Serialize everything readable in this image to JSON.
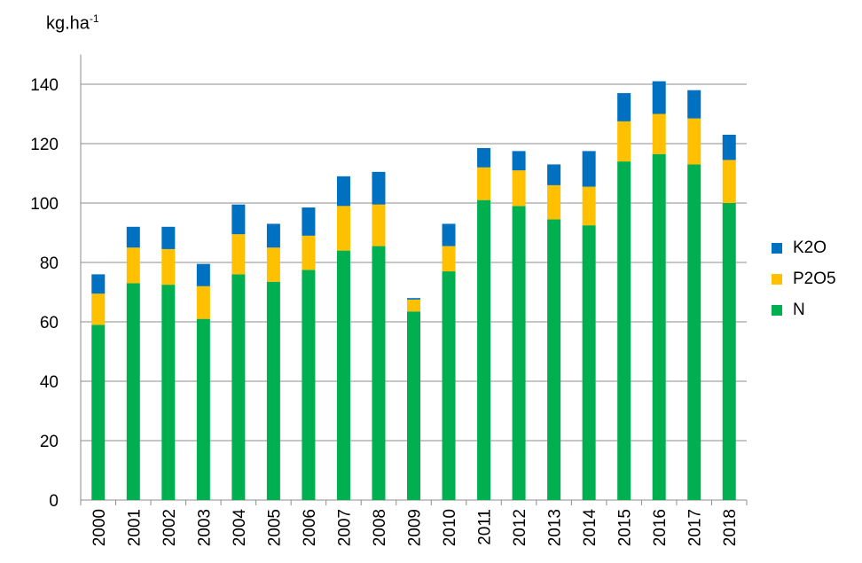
{
  "chart_data": {
    "type": "bar",
    "stacked": true,
    "ylabel_main": "kg.ha",
    "ylabel_sup": "-1",
    "ylim": [
      0,
      150
    ],
    "yticks": [
      0,
      20,
      40,
      60,
      80,
      100,
      120,
      140
    ],
    "grid": true,
    "legend_position": "right",
    "categories": [
      "2000",
      "2001",
      "2002",
      "2003",
      "2004",
      "2005",
      "2006",
      "2007",
      "2008",
      "2009",
      "2010",
      "2011",
      "2012",
      "2013",
      "2014",
      "2015",
      "2016",
      "2017",
      "2018"
    ],
    "series": [
      {
        "name": "N",
        "color": "#00b050",
        "values": [
          59,
          73,
          72.5,
          61,
          76,
          73.5,
          77.5,
          84,
          85.5,
          63.5,
          77,
          101,
          99,
          94.5,
          92.5,
          114,
          116.5,
          113,
          100
        ]
      },
      {
        "name": "P2O5",
        "color": "#ffc000",
        "values": [
          10.5,
          12,
          12,
          11,
          13.5,
          11.5,
          11.5,
          15,
          14,
          4,
          8.5,
          11,
          12,
          11.5,
          13,
          13.5,
          13.5,
          15.5,
          14.5
        ]
      },
      {
        "name": "K2O",
        "color": "#0070c0",
        "values": [
          6.5,
          7,
          7.5,
          7.5,
          10,
          8,
          9.5,
          10,
          11,
          0.5,
          7.5,
          6.5,
          6.5,
          7,
          12,
          9.5,
          11,
          9.5,
          8.5
        ]
      }
    ]
  }
}
